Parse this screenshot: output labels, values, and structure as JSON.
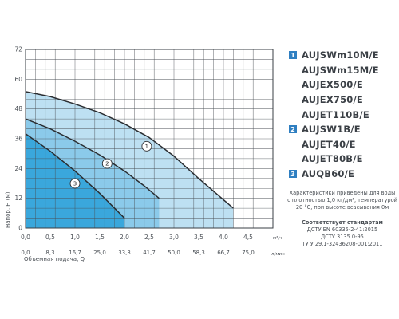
{
  "chart_data": {
    "type": "line",
    "ylabel": "Напор, H (м)",
    "xlabel": "Объемная подача, Q",
    "x_unit_top": "м³/ч",
    "x_unit_bottom": "л/мин",
    "xlim": [
      0,
      5
    ],
    "ylim": [
      0,
      72
    ],
    "x_ticks": [
      "0,0",
      "0,5",
      "1,0",
      "1,5",
      "2,0",
      "2,5",
      "3,0",
      "3,5",
      "4,0",
      "4,5"
    ],
    "x_ticks_lpm": [
      "0,0",
      "8,3",
      "16,7",
      "25,0",
      "33,3",
      "41,7",
      "50,0",
      "58,3",
      "66,7",
      "75,0"
    ],
    "y_ticks": [
      "0",
      "12",
      "24",
      "36",
      "48",
      "60",
      "72"
    ],
    "grid": true,
    "series": [
      {
        "name": "1",
        "label": "1",
        "color": "#bde0f2",
        "points": [
          [
            0,
            55
          ],
          [
            0.5,
            53
          ],
          [
            1.0,
            50
          ],
          [
            1.5,
            46.5
          ],
          [
            2.0,
            42
          ],
          [
            2.5,
            36.5
          ],
          [
            3.0,
            29
          ],
          [
            3.5,
            20
          ],
          [
            4.2,
            8
          ]
        ],
        "label_at": [
          2.45,
          33
        ]
      },
      {
        "name": "2",
        "label": "2",
        "color": "#8bcaea",
        "points": [
          [
            0,
            44
          ],
          [
            0.5,
            40
          ],
          [
            1.0,
            35
          ],
          [
            1.5,
            29.5
          ],
          [
            2.0,
            23
          ],
          [
            2.4,
            17
          ],
          [
            2.7,
            12
          ]
        ],
        "label_at": [
          1.65,
          26
        ]
      },
      {
        "name": "3",
        "label": "3",
        "color": "#3aa7dc",
        "points": [
          [
            0,
            38
          ],
          [
            0.5,
            31
          ],
          [
            1.0,
            23
          ],
          [
            1.5,
            14
          ],
          [
            2.0,
            4
          ]
        ],
        "label_at": [
          1.0,
          18
        ]
      }
    ]
  },
  "models": [
    {
      "group": "1",
      "name": "AUJSWm10M/E"
    },
    {
      "group": "",
      "name": "AUJSWm15M/E"
    },
    {
      "group": "",
      "name": "AUJEX500/E"
    },
    {
      "group": "",
      "name": "AUJEX750/E"
    },
    {
      "group": "",
      "name": "AUJET110B/E"
    },
    {
      "group": "2",
      "name": "AUJSW1B/E"
    },
    {
      "group": "",
      "name": "AUJET40/E"
    },
    {
      "group": "",
      "name": "AUJET80B/E"
    },
    {
      "group": "3",
      "name": "AUQB60/E"
    }
  ],
  "notes": {
    "line1": "Характеристики приведены для воды",
    "line2": "с плотностью 1,0 кг/дм³, температурой",
    "line3": "20 °С, при высоте всасывания 0м",
    "std_title": "Соответствует стандартам",
    "std1": "ДСТУ EN 60335-2-41:2015",
    "std2": "ДСТУ 3135.0-95",
    "std3": "ТУ У 29.1-32436208-001:2011"
  }
}
